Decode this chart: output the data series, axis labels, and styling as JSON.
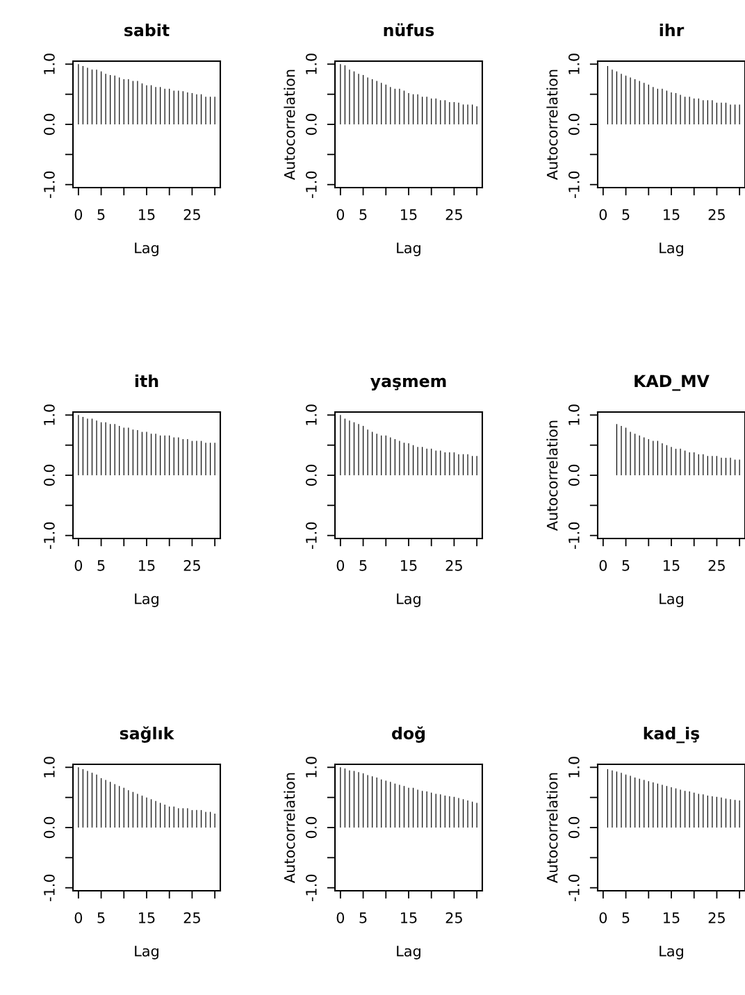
{
  "chart_data": [
    {
      "type": "bar",
      "title": "sabit",
      "xlabel": "Lag",
      "x": [
        0,
        1,
        2,
        3,
        4,
        5,
        6,
        7,
        8,
        9,
        10,
        11,
        12,
        13,
        14,
        15,
        16,
        17,
        18,
        19,
        20,
        21,
        22,
        23,
        24,
        25,
        26,
        27,
        28,
        29,
        30
      ],
      "series": [
        {
          "color": "#000000",
          "values": [
            1.0,
            0.97,
            0.94,
            0.91,
            0.91,
            0.88,
            0.84,
            0.82,
            0.81,
            0.78,
            0.75,
            0.75,
            0.72,
            0.72,
            0.68,
            0.65,
            0.65,
            0.62,
            0.62,
            0.59,
            0.59,
            0.56,
            0.56,
            0.55,
            0.53,
            0.52,
            0.5,
            0.5,
            0.46,
            0.46,
            0.46
          ]
        }
      ],
      "xlim": [
        -1.2,
        31.2
      ],
      "ylim": [
        -1.05,
        1.05
      ],
      "xticks": [
        0,
        5,
        {
          "value": 10,
          "label": null
        },
        15,
        {
          "value": 20,
          "label": null
        },
        25,
        {
          "value": 30,
          "label": null
        }
      ],
      "yticks": [
        {
          "value": -1,
          "label": "-1.0"
        },
        {
          "value": -0.5,
          "label": null
        },
        {
          "value": 0,
          "label": "0.0"
        },
        {
          "value": 0.5,
          "label": null
        },
        {
          "value": 1,
          "label": "1.0"
        }
      ]
    },
    {
      "type": "bar",
      "title": "nüfus",
      "xlabel": "Lag",
      "ylabel": "Autocorrelation",
      "x": [
        0,
        1,
        2,
        3,
        4,
        5,
        6,
        7,
        8,
        9,
        10,
        11,
        12,
        13,
        14,
        15,
        16,
        17,
        18,
        19,
        20,
        21,
        22,
        23,
        24,
        25,
        26,
        27,
        28,
        29,
        30
      ],
      "series": [
        {
          "color": "#000000",
          "values": [
            1.0,
            0.98,
            0.91,
            0.88,
            0.84,
            0.82,
            0.78,
            0.75,
            0.72,
            0.69,
            0.66,
            0.62,
            0.59,
            0.59,
            0.56,
            0.52,
            0.5,
            0.5,
            0.46,
            0.46,
            0.43,
            0.43,
            0.4,
            0.4,
            0.37,
            0.37,
            0.36,
            0.33,
            0.33,
            0.33,
            0.3
          ]
        }
      ],
      "xlim": [
        -1.2,
        31.2
      ],
      "ylim": [
        -1.05,
        1.05
      ],
      "xticks": [
        0,
        5,
        {
          "value": 10,
          "label": null
        },
        15,
        {
          "value": 20,
          "label": null
        },
        25,
        {
          "value": 30,
          "label": null
        }
      ],
      "yticks": [
        {
          "value": -1,
          "label": "-1.0"
        },
        {
          "value": -0.5,
          "label": null
        },
        {
          "value": 0,
          "label": "0.0"
        },
        {
          "value": 0.5,
          "label": null
        },
        {
          "value": 1,
          "label": "1.0"
        }
      ]
    },
    {
      "type": "bar",
      "title": "ihr",
      "xlabel": "Lag",
      "ylabel": "Autocorrelation",
      "x": [
        1,
        2,
        3,
        4,
        5,
        6,
        7,
        8,
        9,
        10,
        11,
        12,
        13,
        14,
        15,
        16,
        17,
        18,
        19,
        20,
        21,
        22,
        23,
        24,
        25,
        26,
        27,
        28,
        29,
        30
      ],
      "series": [
        {
          "color": "#000000",
          "values": [
            0.97,
            0.91,
            0.88,
            0.84,
            0.81,
            0.78,
            0.75,
            0.72,
            0.69,
            0.66,
            0.62,
            0.59,
            0.59,
            0.56,
            0.53,
            0.52,
            0.49,
            0.46,
            0.46,
            0.43,
            0.43,
            0.4,
            0.4,
            0.4,
            0.36,
            0.36,
            0.36,
            0.33,
            0.33,
            0.33
          ]
        }
      ],
      "xlim": [
        -1.2,
        31.2
      ],
      "ylim": [
        -1.05,
        1.05
      ],
      "xticks": [
        0,
        5,
        {
          "value": 10,
          "label": null
        },
        15,
        {
          "value": 20,
          "label": null
        },
        25,
        {
          "value": 30,
          "label": null
        }
      ],
      "yticks": [
        {
          "value": -1,
          "label": "-1.0"
        },
        {
          "value": -0.5,
          "label": null
        },
        {
          "value": 0,
          "label": "0.0"
        },
        {
          "value": 0.5,
          "label": null
        },
        {
          "value": 1,
          "label": "1.0"
        }
      ]
    },
    {
      "type": "bar",
      "title": "ith",
      "xlabel": "Lag",
      "x": [
        0,
        1,
        2,
        3,
        4,
        5,
        6,
        7,
        8,
        9,
        10,
        11,
        12,
        13,
        14,
        15,
        16,
        17,
        18,
        19,
        20,
        21,
        22,
        23,
        24,
        25,
        26,
        27,
        28,
        29,
        30
      ],
      "series": [
        {
          "color": "#000000",
          "values": [
            1.0,
            0.97,
            0.94,
            0.94,
            0.91,
            0.88,
            0.88,
            0.85,
            0.85,
            0.82,
            0.79,
            0.79,
            0.76,
            0.75,
            0.72,
            0.72,
            0.69,
            0.69,
            0.66,
            0.66,
            0.66,
            0.63,
            0.63,
            0.6,
            0.6,
            0.57,
            0.57,
            0.57,
            0.54,
            0.54,
            0.54
          ]
        }
      ],
      "xlim": [
        -1.2,
        31.2
      ],
      "ylim": [
        -1.05,
        1.05
      ],
      "xticks": [
        0,
        5,
        {
          "value": 10,
          "label": null
        },
        15,
        {
          "value": 20,
          "label": null
        },
        25,
        {
          "value": 30,
          "label": null
        }
      ],
      "yticks": [
        {
          "value": -1,
          "label": "-1.0"
        },
        {
          "value": -0.5,
          "label": null
        },
        {
          "value": 0,
          "label": "0.0"
        },
        {
          "value": 0.5,
          "label": null
        },
        {
          "value": 1,
          "label": "1.0"
        }
      ]
    },
    {
      "type": "bar",
      "title": "yaşmem",
      "xlabel": "Lag",
      "x": [
        0,
        1,
        2,
        3,
        4,
        5,
        6,
        7,
        8,
        9,
        10,
        11,
        12,
        13,
        14,
        15,
        16,
        17,
        18,
        19,
        20,
        21,
        22,
        23,
        24,
        25,
        26,
        27,
        28,
        29,
        30
      ],
      "series": [
        {
          "color": "#000000",
          "values": [
            1.0,
            0.94,
            0.91,
            0.88,
            0.85,
            0.82,
            0.76,
            0.72,
            0.69,
            0.66,
            0.66,
            0.63,
            0.6,
            0.57,
            0.54,
            0.53,
            0.5,
            0.47,
            0.47,
            0.44,
            0.44,
            0.41,
            0.41,
            0.38,
            0.38,
            0.38,
            0.35,
            0.35,
            0.35,
            0.32,
            0.32
          ]
        }
      ],
      "xlim": [
        -1.2,
        31.2
      ],
      "ylim": [
        -1.05,
        1.05
      ],
      "xticks": [
        0,
        5,
        {
          "value": 10,
          "label": null
        },
        15,
        {
          "value": 20,
          "label": null
        },
        25,
        {
          "value": 30,
          "label": null
        }
      ],
      "yticks": [
        {
          "value": -1,
          "label": "-1.0"
        },
        {
          "value": -0.5,
          "label": null
        },
        {
          "value": 0,
          "label": "0.0"
        },
        {
          "value": 0.5,
          "label": null
        },
        {
          "value": 1,
          "label": "1.0"
        }
      ]
    },
    {
      "type": "bar",
      "title": "KAD_MV",
      "xlabel": "Lag",
      "ylabel": "Autocorrelation",
      "x": [
        3,
        4,
        5,
        6,
        7,
        8,
        9,
        10,
        11,
        12,
        13,
        14,
        15,
        16,
        17,
        18,
        19,
        20,
        21,
        22,
        23,
        24,
        25,
        26,
        27,
        28,
        29,
        30
      ],
      "series": [
        {
          "color": "#000000",
          "values": [
            0.85,
            0.82,
            0.79,
            0.72,
            0.69,
            0.66,
            0.63,
            0.6,
            0.57,
            0.57,
            0.53,
            0.5,
            0.47,
            0.44,
            0.44,
            0.41,
            0.38,
            0.38,
            0.35,
            0.35,
            0.32,
            0.32,
            0.32,
            0.29,
            0.29,
            0.29,
            0.26,
            0.26
          ]
        }
      ],
      "xlim": [
        -1.2,
        31.2
      ],
      "ylim": [
        -1.05,
        1.05
      ],
      "xticks": [
        0,
        5,
        {
          "value": 10,
          "label": null
        },
        15,
        {
          "value": 20,
          "label": null
        },
        25,
        {
          "value": 30,
          "label": null
        }
      ],
      "yticks": [
        {
          "value": -1,
          "label": "-1.0"
        },
        {
          "value": -0.5,
          "label": null
        },
        {
          "value": 0,
          "label": "0.0"
        },
        {
          "value": 0.5,
          "label": null
        },
        {
          "value": 1,
          "label": "1.0"
        }
      ]
    },
    {
      "type": "bar",
      "title": "sağlık",
      "xlabel": "Lag",
      "x": [
        0,
        1,
        2,
        3,
        4,
        5,
        6,
        7,
        8,
        9,
        10,
        11,
        12,
        13,
        14,
        15,
        16,
        17,
        18,
        19,
        20,
        21,
        22,
        23,
        24,
        25,
        26,
        27,
        28,
        29,
        30
      ],
      "series": [
        {
          "color": "#000000",
          "values": [
            1.0,
            0.97,
            0.94,
            0.91,
            0.88,
            0.82,
            0.79,
            0.76,
            0.72,
            0.69,
            0.66,
            0.62,
            0.59,
            0.56,
            0.53,
            0.5,
            0.47,
            0.44,
            0.41,
            0.38,
            0.35,
            0.35,
            0.32,
            0.32,
            0.32,
            0.29,
            0.29,
            0.29,
            0.26,
            0.26,
            0.23
          ]
        }
      ],
      "xlim": [
        -1.2,
        31.2
      ],
      "ylim": [
        -1.05,
        1.05
      ],
      "xticks": [
        0,
        5,
        {
          "value": 10,
          "label": null
        },
        15,
        {
          "value": 20,
          "label": null
        },
        25,
        {
          "value": 30,
          "label": null
        }
      ],
      "yticks": [
        {
          "value": -1,
          "label": "-1.0"
        },
        {
          "value": -0.5,
          "label": null
        },
        {
          "value": 0,
          "label": "0.0"
        },
        {
          "value": 0.5,
          "label": null
        },
        {
          "value": 1,
          "label": "1.0"
        }
      ]
    },
    {
      "type": "bar",
      "title": "doğ",
      "xlabel": "Lag",
      "ylabel": "Autocorrelation",
      "x": [
        0,
        1,
        2,
        3,
        4,
        5,
        6,
        7,
        8,
        9,
        10,
        11,
        12,
        13,
        14,
        15,
        16,
        17,
        18,
        19,
        20,
        21,
        22,
        23,
        24,
        25,
        26,
        27,
        28,
        29,
        30
      ],
      "series": [
        {
          "color": "#000000",
          "values": [
            1.0,
            0.98,
            0.95,
            0.94,
            0.92,
            0.9,
            0.87,
            0.85,
            0.83,
            0.8,
            0.78,
            0.76,
            0.73,
            0.71,
            0.69,
            0.66,
            0.66,
            0.63,
            0.61,
            0.6,
            0.58,
            0.56,
            0.55,
            0.53,
            0.52,
            0.51,
            0.49,
            0.47,
            0.45,
            0.43,
            0.41
          ]
        }
      ],
      "xlim": [
        -1.2,
        31.2
      ],
      "ylim": [
        -1.05,
        1.05
      ],
      "xticks": [
        0,
        5,
        {
          "value": 10,
          "label": null
        },
        15,
        {
          "value": 20,
          "label": null
        },
        25,
        {
          "value": 30,
          "label": null
        }
      ],
      "yticks": [
        {
          "value": -1,
          "label": "-1.0"
        },
        {
          "value": -0.5,
          "label": null
        },
        {
          "value": 0,
          "label": "0.0"
        },
        {
          "value": 0.5,
          "label": null
        },
        {
          "value": 1,
          "label": "1.0"
        }
      ]
    },
    {
      "type": "bar",
      "title": "kad_iş",
      "xlabel": "Lag",
      "ylabel": "Autocorrelation",
      "x": [
        1,
        2,
        3,
        4,
        5,
        6,
        7,
        8,
        9,
        10,
        11,
        12,
        13,
        14,
        15,
        16,
        17,
        18,
        19,
        20,
        21,
        22,
        23,
        24,
        25,
        26,
        27,
        28,
        29,
        30
      ],
      "series": [
        {
          "color": "#000000",
          "values": [
            0.97,
            0.95,
            0.93,
            0.91,
            0.88,
            0.86,
            0.83,
            0.81,
            0.79,
            0.77,
            0.75,
            0.73,
            0.71,
            0.69,
            0.67,
            0.65,
            0.63,
            0.61,
            0.6,
            0.58,
            0.56,
            0.55,
            0.53,
            0.52,
            0.51,
            0.5,
            0.48,
            0.47,
            0.46,
            0.45
          ]
        }
      ],
      "xlim": [
        -1.2,
        31.2
      ],
      "ylim": [
        -1.05,
        1.05
      ],
      "xticks": [
        0,
        5,
        {
          "value": 10,
          "label": null
        },
        15,
        {
          "value": 20,
          "label": null
        },
        25,
        {
          "value": 30,
          "label": null
        }
      ],
      "yticks": [
        {
          "value": -1,
          "label": "-1.0"
        },
        {
          "value": -0.5,
          "label": null
        },
        {
          "value": 0,
          "label": "0.0"
        },
        {
          "value": 0.5,
          "label": null
        },
        {
          "value": 1,
          "label": "1.0"
        }
      ]
    }
  ]
}
